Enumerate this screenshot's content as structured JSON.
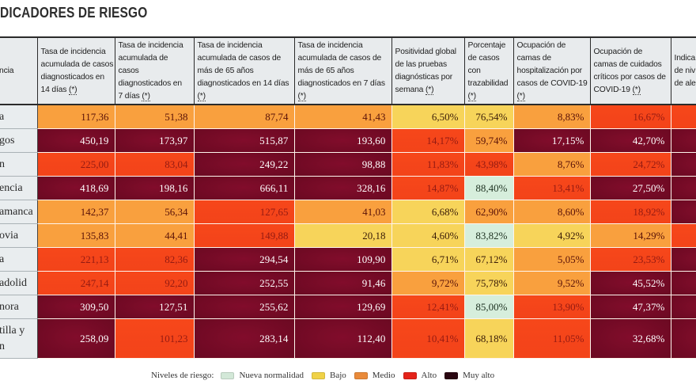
{
  "title": "DICADORES DE RIESGO",
  "levels": {
    "nueva_normalidad": {
      "bg": "#d6eedc",
      "fg": "#1f3322",
      "swatch": "#d3e8d8"
    },
    "bajo": {
      "bg": "#f7d45a",
      "fg": "#3a1c08",
      "swatch": "#f0d247"
    },
    "medio": {
      "bg": "#f9a03e",
      "fg": "#5a1208",
      "swatch": "#e98a3a"
    },
    "alto": {
      "bg": "#f5461b",
      "fg": "#951b12",
      "swatch": "#e4231a"
    },
    "muy_alto": {
      "bg": "#760a25",
      "fg": "#ffffff",
      "swatch": "#2a0611"
    }
  },
  "table": {
    "columns": [
      {
        "key": "provincia",
        "lines": [
          "ncia"
        ]
      },
      {
        "key": "incidencia-14-dias",
        "lines": [
          "Tasa de incidencia",
          "acumulada de casos",
          "diagnosticados en",
          "14 días"
        ],
        "note": "(*)",
        "note_own_line": false
      },
      {
        "key": "incidencia-7-dias",
        "lines": [
          "Tasa de incidencia",
          "acumulada de",
          "casos",
          "diagnosticados en",
          "7 días"
        ],
        "note": "(*)",
        "note_own_line": false
      },
      {
        "key": "incidencia-mayores-65-14-dias",
        "lines": [
          "Tasa de incidencia",
          "acumulada de casos de",
          "más de 65 años",
          "diagnosticados en 14 días"
        ],
        "note": "(*)",
        "note_own_line": true
      },
      {
        "key": "incidencia-mayores-65-7-dias",
        "lines": [
          "Tasa de incidencia",
          "acumulada de casos de",
          "más de 65 años",
          "diagnosticados en 7 días"
        ],
        "note": "(*)",
        "note_own_line": true
      },
      {
        "key": "positividad",
        "lines": [
          "Positividad global",
          "de las pruebas",
          "diagnósticas por",
          "semana"
        ],
        "note": "(*)",
        "note_own_line": false
      },
      {
        "key": "trazabilidad",
        "lines": [
          "Porcentaje",
          "de casos",
          "con",
          "trazabilidad"
        ],
        "note": "(*)",
        "note_own_line": true
      },
      {
        "key": "ocupacion-hospitalizacion",
        "lines": [
          "Ocupación de",
          "camas de",
          "hospitalización por",
          "casos de COVID-19"
        ],
        "note": "(*)",
        "note_own_line": true
      },
      {
        "key": "ocupacion-uci",
        "lines": [
          "Ocupación de",
          "camas de cuidados",
          "críticos por casos de",
          "COVID-19"
        ],
        "note": "(*)",
        "note_own_line": false
      },
      {
        "key": "indicador-alerta",
        "lines": [
          "Indica",
          "de niv",
          "de aler"
        ]
      }
    ],
    "rows": [
      {
        "province": "a",
        "cells": [
          {
            "v": "117,36",
            "level": "medio"
          },
          {
            "v": "51,38",
            "level": "medio"
          },
          {
            "v": "87,74",
            "level": "medio"
          },
          {
            "v": "41,43",
            "level": "medio"
          },
          {
            "v": "6,50%",
            "level": "bajo"
          },
          {
            "v": "76,54%",
            "level": "bajo"
          },
          {
            "v": "8,83%",
            "level": "medio"
          },
          {
            "v": "16,67%",
            "level": "alto"
          },
          {
            "v": "",
            "level": "alto"
          }
        ]
      },
      {
        "province": "gos",
        "cells": [
          {
            "v": "450,19",
            "level": "muy_alto"
          },
          {
            "v": "173,97",
            "level": "muy_alto"
          },
          {
            "v": "515,87",
            "level": "muy_alto"
          },
          {
            "v": "193,60",
            "level": "muy_alto"
          },
          {
            "v": "14,17%",
            "level": "alto"
          },
          {
            "v": "59,74%",
            "level": "medio"
          },
          {
            "v": "17,15%",
            "level": "muy_alto"
          },
          {
            "v": "42,70%",
            "level": "muy_alto"
          },
          {
            "v": "",
            "level": "muy_alto"
          }
        ]
      },
      {
        "province": "n",
        "cells": [
          {
            "v": "225,00",
            "level": "alto"
          },
          {
            "v": "83,04",
            "level": "alto"
          },
          {
            "v": "249,22",
            "level": "muy_alto"
          },
          {
            "v": "98,88",
            "level": "muy_alto"
          },
          {
            "v": "11,83%",
            "level": "alto"
          },
          {
            "v": "43,98%",
            "level": "alto"
          },
          {
            "v": "8,76%",
            "level": "medio"
          },
          {
            "v": "24,72%",
            "level": "alto"
          },
          {
            "v": "",
            "level": "muy_alto"
          }
        ]
      },
      {
        "province": "encia",
        "cells": [
          {
            "v": "418,69",
            "level": "muy_alto"
          },
          {
            "v": "198,16",
            "level": "muy_alto"
          },
          {
            "v": "666,11",
            "level": "muy_alto"
          },
          {
            "v": "328,16",
            "level": "muy_alto"
          },
          {
            "v": "14,87%",
            "level": "alto"
          },
          {
            "v": "88,40%",
            "level": "nueva_normalidad"
          },
          {
            "v": "13,41%",
            "level": "alto"
          },
          {
            "v": "27,50%",
            "level": "muy_alto"
          },
          {
            "v": "",
            "level": "muy_alto"
          }
        ]
      },
      {
        "province": "amanca",
        "cells": [
          {
            "v": "142,37",
            "level": "medio"
          },
          {
            "v": "56,34",
            "level": "medio"
          },
          {
            "v": "127,65",
            "level": "alto"
          },
          {
            "v": "41,03",
            "level": "medio"
          },
          {
            "v": "6,68%",
            "level": "bajo"
          },
          {
            "v": "62,90%",
            "level": "medio"
          },
          {
            "v": "8,60%",
            "level": "medio"
          },
          {
            "v": "18,92%",
            "level": "alto"
          },
          {
            "v": "",
            "level": "muy_alto"
          }
        ]
      },
      {
        "province": "ovia",
        "cells": [
          {
            "v": "135,83",
            "level": "medio"
          },
          {
            "v": "44,41",
            "level": "medio"
          },
          {
            "v": "149,88",
            "level": "alto"
          },
          {
            "v": "20,18",
            "level": "bajo"
          },
          {
            "v": "4,60%",
            "level": "bajo"
          },
          {
            "v": "83,82%",
            "level": "nueva_normalidad"
          },
          {
            "v": "4,92%",
            "level": "bajo"
          },
          {
            "v": "14,29%",
            "level": "medio"
          },
          {
            "v": "",
            "level": "alto"
          }
        ]
      },
      {
        "province": "a",
        "cells": [
          {
            "v": "221,13",
            "level": "alto"
          },
          {
            "v": "82,36",
            "level": "alto"
          },
          {
            "v": "294,54",
            "level": "muy_alto"
          },
          {
            "v": "109,90",
            "level": "muy_alto"
          },
          {
            "v": "6,71%",
            "level": "bajo"
          },
          {
            "v": "67,12%",
            "level": "bajo"
          },
          {
            "v": "5,05%",
            "level": "medio"
          },
          {
            "v": "23,53%",
            "level": "alto"
          },
          {
            "v": "",
            "level": "muy_alto"
          }
        ]
      },
      {
        "province": "adolid",
        "cells": [
          {
            "v": "247,14",
            "level": "alto"
          },
          {
            "v": "92,20",
            "level": "alto"
          },
          {
            "v": "252,55",
            "level": "muy_alto"
          },
          {
            "v": "91,46",
            "level": "muy_alto"
          },
          {
            "v": "9,72%",
            "level": "medio"
          },
          {
            "v": "75,78%",
            "level": "bajo"
          },
          {
            "v": "9,52%",
            "level": "medio"
          },
          {
            "v": "45,52%",
            "level": "muy_alto"
          },
          {
            "v": "",
            "level": "muy_alto"
          }
        ]
      },
      {
        "province": "nora",
        "cells": [
          {
            "v": "309,50",
            "level": "muy_alto"
          },
          {
            "v": "127,51",
            "level": "muy_alto"
          },
          {
            "v": "255,62",
            "level": "muy_alto"
          },
          {
            "v": "129,69",
            "level": "muy_alto"
          },
          {
            "v": "12,41%",
            "level": "alto"
          },
          {
            "v": "85,00%",
            "level": "nueva_normalidad"
          },
          {
            "v": "13,90%",
            "level": "alto"
          },
          {
            "v": "47,37%",
            "level": "muy_alto"
          },
          {
            "v": "",
            "level": "muy_alto"
          }
        ]
      },
      {
        "province": "tilla y\nn",
        "cells": [
          {
            "v": "258,09",
            "level": "muy_alto"
          },
          {
            "v": "101,23",
            "level": "alto"
          },
          {
            "v": "283,14",
            "level": "muy_alto"
          },
          {
            "v": "112,40",
            "level": "muy_alto"
          },
          {
            "v": "10,41%",
            "level": "alto"
          },
          {
            "v": "68,18%",
            "level": "bajo"
          },
          {
            "v": "11,05%",
            "level": "alto"
          },
          {
            "v": "32,68%",
            "level": "muy_alto"
          },
          {
            "v": "",
            "level": "muy_alto"
          }
        ]
      }
    ]
  },
  "legend": {
    "label": "Niveles de riesgo:",
    "items": [
      {
        "level": "nueva_normalidad",
        "label": "Nueva normalidad"
      },
      {
        "level": "bajo",
        "label": "Bajo"
      },
      {
        "level": "medio",
        "label": "Medio"
      },
      {
        "level": "alto",
        "label": "Alto"
      },
      {
        "level": "muy_alto",
        "label": "Muy alto"
      }
    ]
  }
}
